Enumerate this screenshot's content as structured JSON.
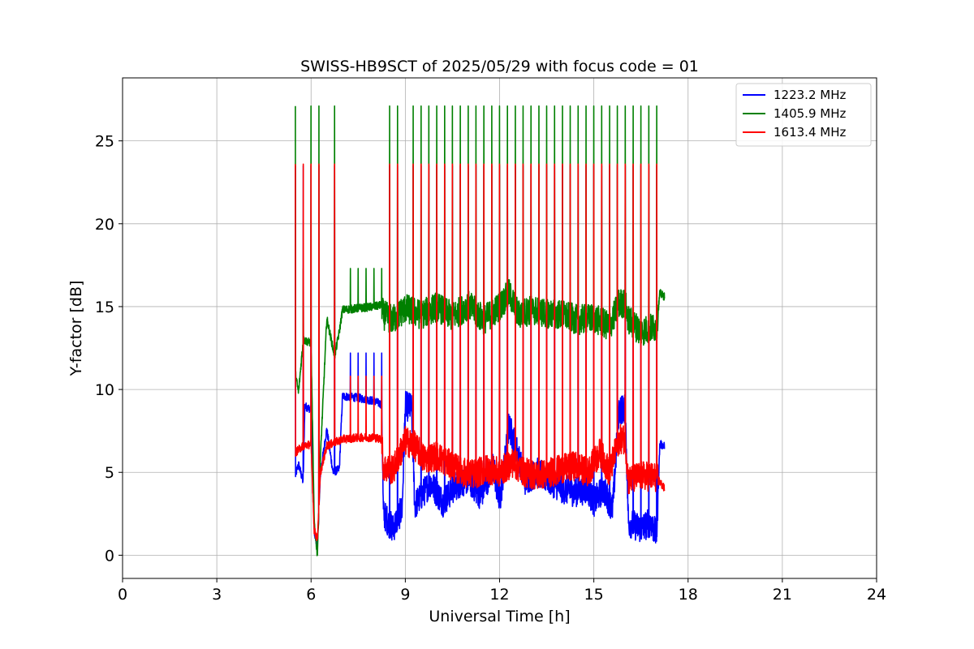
{
  "chart_data": {
    "type": "line",
    "title": "SWISS-HB9SCT of 2025/05/29 with focus code = 01",
    "xlabel": "Universal Time [h]",
    "ylabel": "Y-factor [dB]",
    "xlim": [
      0,
      24
    ],
    "ylim": [
      -1.4,
      28.8
    ],
    "xticks": [
      0,
      3,
      6,
      9,
      12,
      15,
      18,
      21,
      24
    ],
    "yticks": [
      0,
      5,
      10,
      15,
      20,
      25
    ],
    "grid": true,
    "legend_position": "top-right",
    "spike_times": [
      5.5,
      5.75,
      6.0,
      6.25,
      6.75,
      7.25,
      7.5,
      7.75,
      8.0,
      8.25,
      8.5,
      8.75,
      9.25,
      9.5,
      9.75,
      10.0,
      10.25,
      10.5,
      10.75,
      11.0,
      11.25,
      11.5,
      11.75,
      12.0,
      12.25,
      12.5,
      12.75,
      13.0,
      13.25,
      13.5,
      13.75,
      14.0,
      14.25,
      14.5,
      14.75,
      15.0,
      15.25,
      15.5,
      15.75,
      16.0,
      16.25,
      16.5,
      16.75,
      17.0
    ],
    "series": [
      {
        "name": "1223.2 MHz",
        "color": "#0000ff",
        "points": [
          [
            5.5,
            4.8
          ],
          [
            5.6,
            5.5
          ],
          [
            5.75,
            4.4
          ],
          [
            5.8,
            9.0
          ],
          [
            6.0,
            8.8
          ],
          [
            6.1,
            1.5
          ],
          [
            6.2,
            0.4
          ],
          [
            6.3,
            5.0
          ],
          [
            6.5,
            7.6
          ],
          [
            6.7,
            5.0
          ],
          [
            6.9,
            5.2
          ],
          [
            7.0,
            9.6
          ],
          [
            7.5,
            9.5
          ],
          [
            8.0,
            9.3
          ],
          [
            8.25,
            9.1
          ],
          [
            8.3,
            2.5
          ],
          [
            8.6,
            1.6
          ],
          [
            8.9,
            2.8
          ],
          [
            9.0,
            9.0
          ],
          [
            9.2,
            8.9
          ],
          [
            9.3,
            3.0
          ],
          [
            9.8,
            4.4
          ],
          [
            10.2,
            3.2
          ],
          [
            10.6,
            4.2
          ],
          [
            11.0,
            4.6
          ],
          [
            11.4,
            3.6
          ],
          [
            11.8,
            5.4
          ],
          [
            12.0,
            3.0
          ],
          [
            12.3,
            7.8
          ],
          [
            12.5,
            6.7
          ],
          [
            12.8,
            4.5
          ],
          [
            13.2,
            5.0
          ],
          [
            13.6,
            4.5
          ],
          [
            14.0,
            4.0
          ],
          [
            14.4,
            3.8
          ],
          [
            14.8,
            4.0
          ],
          [
            15.0,
            3.2
          ],
          [
            15.3,
            4.0
          ],
          [
            15.6,
            2.8
          ],
          [
            15.8,
            8.8
          ],
          [
            16.0,
            8.8
          ],
          [
            16.1,
            2.0
          ],
          [
            16.5,
            1.6
          ],
          [
            16.8,
            2.0
          ],
          [
            17.0,
            1.2
          ],
          [
            17.1,
            6.7
          ],
          [
            17.25,
            6.6
          ]
        ]
      },
      {
        "name": "1405.9 MHz",
        "color": "#008000",
        "points": [
          [
            5.5,
            11.0
          ],
          [
            5.6,
            9.8
          ],
          [
            5.75,
            13.0
          ],
          [
            6.0,
            12.8
          ],
          [
            6.1,
            2.0
          ],
          [
            6.2,
            0.0
          ],
          [
            6.3,
            6.0
          ],
          [
            6.5,
            14.3
          ],
          [
            6.75,
            12.0
          ],
          [
            6.9,
            13.5
          ],
          [
            7.0,
            14.8
          ],
          [
            7.5,
            14.9
          ],
          [
            8.0,
            15.0
          ],
          [
            8.25,
            15.1
          ],
          [
            8.3,
            14.5
          ],
          [
            8.6,
            14.2
          ],
          [
            9.0,
            14.9
          ],
          [
            9.5,
            14.5
          ],
          [
            10.0,
            15.0
          ],
          [
            10.5,
            14.4
          ],
          [
            11.0,
            15.1
          ],
          [
            11.5,
            14.2
          ],
          [
            12.0,
            15.0
          ],
          [
            12.3,
            15.8
          ],
          [
            12.6,
            14.5
          ],
          [
            13.0,
            14.8
          ],
          [
            13.5,
            14.6
          ],
          [
            14.0,
            14.5
          ],
          [
            14.5,
            14.2
          ],
          [
            15.0,
            14.3
          ],
          [
            15.5,
            13.8
          ],
          [
            15.8,
            15.2
          ],
          [
            16.0,
            15.2
          ],
          [
            16.1,
            14.2
          ],
          [
            16.5,
            13.5
          ],
          [
            17.0,
            13.8
          ],
          [
            17.1,
            15.8
          ],
          [
            17.25,
            15.6
          ]
        ]
      },
      {
        "name": "1613.4 MHz",
        "color": "#ff0000",
        "points": [
          [
            5.5,
            6.2
          ],
          [
            5.75,
            6.6
          ],
          [
            6.0,
            6.7
          ],
          [
            6.1,
            1.5
          ],
          [
            6.2,
            1.0
          ],
          [
            6.3,
            5.0
          ],
          [
            6.5,
            6.6
          ],
          [
            6.75,
            6.8
          ],
          [
            7.0,
            7.0
          ],
          [
            7.5,
            7.1
          ],
          [
            8.0,
            7.1
          ],
          [
            8.25,
            7.0
          ],
          [
            8.3,
            5.3
          ],
          [
            8.6,
            5.1
          ],
          [
            9.0,
            6.9
          ],
          [
            9.3,
            6.6
          ],
          [
            9.6,
            5.8
          ],
          [
            10.0,
            6.0
          ],
          [
            10.4,
            5.5
          ],
          [
            10.8,
            5.0
          ],
          [
            11.2,
            4.9
          ],
          [
            11.6,
            5.2
          ],
          [
            12.0,
            5.0
          ],
          [
            12.4,
            5.6
          ],
          [
            12.8,
            5.0
          ],
          [
            13.2,
            4.8
          ],
          [
            13.6,
            5.0
          ],
          [
            14.0,
            5.2
          ],
          [
            14.4,
            5.4
          ],
          [
            14.8,
            5.0
          ],
          [
            15.2,
            6.2
          ],
          [
            15.5,
            5.0
          ],
          [
            15.8,
            7.0
          ],
          [
            16.0,
            7.0
          ],
          [
            16.1,
            4.5
          ],
          [
            16.5,
            4.8
          ],
          [
            17.0,
            4.7
          ],
          [
            17.25,
            4.0
          ]
        ]
      }
    ],
    "spike_peaks": {
      "1223.2 MHz": 23.5,
      "1405.9 MHz": 27.1,
      "1613.4 MHz": 23.6
    }
  }
}
